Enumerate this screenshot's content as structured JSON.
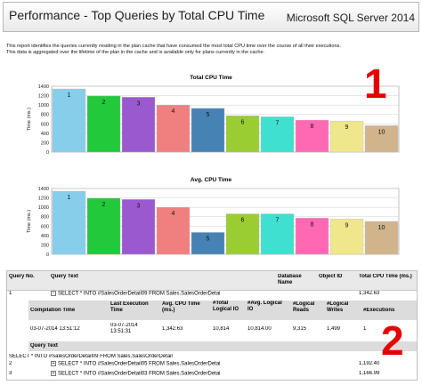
{
  "header": {
    "title": "Performance - Top Queries by Total CPU Time",
    "brand": "Microsoft SQL Server 2014"
  },
  "description": [
    "This report identifies the queries currently residing in the plan cache that have consumed the most total CPU time over the course of all their executions.",
    "This data is aggregated over the lifetime of the plan in the cache and is available only for plans currently in the cache."
  ],
  "annotations": {
    "one": "1",
    "two": "2"
  },
  "colors": [
    "#87ceeb",
    "#22c93a",
    "#9b59d0",
    "#f08080",
    "#4682b4",
    "#9acd32",
    "#40e0d0",
    "#ff69b4",
    "#f0e68c",
    "#d2b48c"
  ],
  "chart_data": [
    {
      "type": "bar",
      "title": "Total CPU Time",
      "ylabel": "Time (ms.)",
      "categories": [
        "1",
        "2",
        "3",
        "4",
        "5",
        "6",
        "7",
        "8",
        "9",
        "10"
      ],
      "values": [
        1342.63,
        1192.4,
        1166.99,
        1000,
        930,
        770,
        750,
        680,
        660,
        560
      ],
      "yticks": [
        0,
        200,
        400,
        600,
        800,
        1000,
        1200,
        1400
      ],
      "ylim": [
        0,
        1400
      ],
      "grid": true
    },
    {
      "type": "bar",
      "title": "Avg. CPU Time",
      "ylabel": "Time (ms.)",
      "categories": [
        "1",
        "2",
        "3",
        "4",
        "5",
        "6",
        "7",
        "8",
        "9",
        "10"
      ],
      "values": [
        1342.63,
        1192.4,
        1166.99,
        1000,
        465,
        860,
        860,
        770,
        750,
        700
      ],
      "yticks": [
        0,
        200,
        400,
        600,
        800,
        1000,
        1200,
        1400
      ],
      "ylim": [
        0,
        1400
      ],
      "grid": true
    }
  ],
  "grid": {
    "columns": [
      "Query No.",
      "Query Text",
      "Database Name",
      "Object ID",
      "Total CPU Time (ms.)"
    ],
    "rows": [
      {
        "no": "1",
        "text": "SELECT * INTO #SalesOrderDetail09 FROM Sales.SalesOrderDetai",
        "db": "",
        "obj": "",
        "cpu": "1,342.63",
        "toggle": "⊟"
      },
      {
        "no": "2",
        "text": "SELECT * INTO #SalesOrderDetail05 FROM Sales.SalesOrderDetai",
        "db": "",
        "obj": "",
        "cpu": "1,192.40",
        "toggle": "⊞"
      },
      {
        "no": "3",
        "text": "SELECT * INTO #SalesOrderDetail03 FROM Sales.SalesOrderDetai",
        "db": "",
        "obj": "",
        "cpu": "1,166.99",
        "toggle": "⊞"
      }
    ],
    "detail": {
      "columns": [
        "Compilation Time",
        "Last Execution Time",
        "Avg. CPU Time (ms.)",
        "#Total Logical IO",
        "#Avg. Logical IO",
        "#Logical Reads",
        "#Logical Writes",
        "#Executions"
      ],
      "values": [
        "03-07-2014 13:51:12",
        "03-07-2014 13:51:31",
        "1,342.63",
        "10,814",
        "10,814.00",
        "9,315",
        "1,499",
        "1"
      ],
      "query_text_label": "Query Text",
      "query_text": "SELECT * INTO #SalesOrderDetail09 FROM Sales.SalesOrderDetail"
    }
  }
}
